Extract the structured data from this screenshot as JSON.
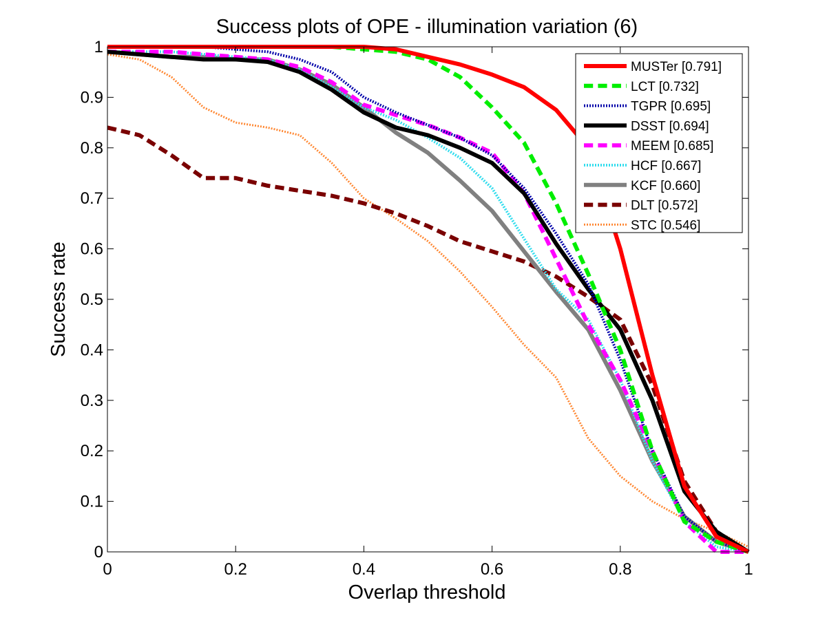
{
  "chart_data": {
    "type": "line",
    "title": "Success plots of OPE - illumination variation (6)",
    "xlabel": "Overlap threshold",
    "ylabel": "Success rate",
    "xlim": [
      0,
      1
    ],
    "ylim": [
      0,
      1
    ],
    "xticks": [
      "0",
      "0.2",
      "0.4",
      "0.6",
      "0.8",
      "1"
    ],
    "yticks": [
      "0",
      "0.1",
      "0.2",
      "0.3",
      "0.4",
      "0.5",
      "0.6",
      "0.7",
      "0.8",
      "0.9",
      "1"
    ],
    "grid": false,
    "legend_position": "top-right",
    "x": [
      0,
      0.05,
      0.1,
      0.15,
      0.2,
      0.25,
      0.3,
      0.35,
      0.4,
      0.45,
      0.5,
      0.55,
      0.6,
      0.65,
      0.7,
      0.75,
      0.8,
      0.85,
      0.9,
      0.95,
      1.0
    ],
    "series": [
      {
        "name": "MUSTer [0.791]",
        "color": "#ff0000",
        "dash": "solid",
        "width": 6,
        "values": [
          1.0,
          1.0,
          1.0,
          1.0,
          1.0,
          1.0,
          1.0,
          1.0,
          1.0,
          0.995,
          0.98,
          0.965,
          0.945,
          0.92,
          0.875,
          0.8,
          0.6,
          0.35,
          0.13,
          0.03,
          0.0
        ]
      },
      {
        "name": "LCT [0.732]",
        "color": "#00ee00",
        "dash": "dashed",
        "width": 6,
        "values": [
          1.0,
          1.0,
          1.0,
          1.0,
          1.0,
          1.0,
          1.0,
          1.0,
          0.995,
          0.99,
          0.975,
          0.94,
          0.88,
          0.81,
          0.69,
          0.55,
          0.4,
          0.2,
          0.06,
          0.02,
          0.0
        ]
      },
      {
        "name": "TGPR [0.695]",
        "color": "#0000aa",
        "dash": "dotted",
        "width": 4,
        "values": [
          1.0,
          1.0,
          1.0,
          1.0,
          0.995,
          0.99,
          0.975,
          0.95,
          0.9,
          0.87,
          0.845,
          0.82,
          0.785,
          0.72,
          0.63,
          0.53,
          0.38,
          0.2,
          0.07,
          0.02,
          0.0
        ]
      },
      {
        "name": "DSST [0.694]",
        "color": "#000000",
        "dash": "solid",
        "width": 6,
        "values": [
          0.99,
          0.985,
          0.98,
          0.975,
          0.975,
          0.97,
          0.95,
          0.915,
          0.87,
          0.84,
          0.825,
          0.8,
          0.77,
          0.71,
          0.61,
          0.52,
          0.44,
          0.3,
          0.12,
          0.04,
          0.0
        ]
      },
      {
        "name": "MEEM [0.685]",
        "color": "#ff00ff",
        "dash": "dashed",
        "width": 6,
        "values": [
          0.99,
          0.99,
          0.99,
          0.985,
          0.98,
          0.975,
          0.96,
          0.93,
          0.885,
          0.865,
          0.845,
          0.82,
          0.79,
          0.71,
          0.58,
          0.45,
          0.34,
          0.2,
          0.06,
          0.0,
          0.0
        ]
      },
      {
        "name": "HCF [0.667]",
        "color": "#33ddee",
        "dash": "dotted",
        "width": 4,
        "values": [
          0.99,
          0.99,
          0.99,
          0.985,
          0.98,
          0.975,
          0.955,
          0.92,
          0.88,
          0.855,
          0.82,
          0.78,
          0.72,
          0.62,
          0.52,
          0.46,
          0.34,
          0.18,
          0.06,
          0.01,
          0.0
        ]
      },
      {
        "name": "KCF [0.660]",
        "color": "#808080",
        "dash": "solid",
        "width": 6,
        "values": [
          0.99,
          0.985,
          0.98,
          0.98,
          0.975,
          0.975,
          0.955,
          0.925,
          0.88,
          0.83,
          0.79,
          0.735,
          0.675,
          0.595,
          0.515,
          0.44,
          0.32,
          0.18,
          0.07,
          0.02,
          0.0
        ]
      },
      {
        "name": "DLT [0.572]",
        "color": "#7a0000",
        "dash": "dashed",
        "width": 6,
        "values": [
          0.84,
          0.825,
          0.785,
          0.74,
          0.74,
          0.725,
          0.715,
          0.705,
          0.69,
          0.67,
          0.645,
          0.615,
          0.595,
          0.575,
          0.545,
          0.505,
          0.46,
          0.33,
          0.14,
          0.04,
          0.0
        ]
      },
      {
        "name": "STC [0.546]",
        "color": "#ff8833",
        "dash": "dotted",
        "width": 3,
        "values": [
          0.985,
          0.975,
          0.94,
          0.88,
          0.85,
          0.84,
          0.825,
          0.77,
          0.7,
          0.66,
          0.615,
          0.555,
          0.485,
          0.41,
          0.345,
          0.225,
          0.15,
          0.1,
          0.065,
          0.04,
          0.01
        ]
      }
    ]
  }
}
